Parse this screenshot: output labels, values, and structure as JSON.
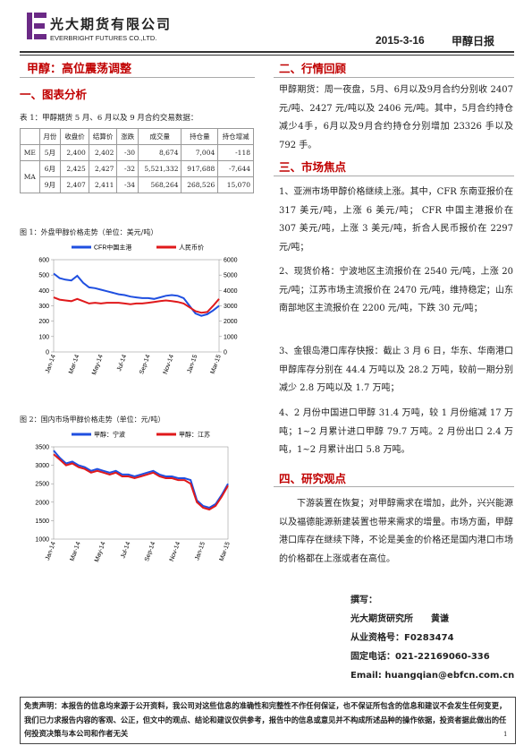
{
  "header": {
    "company": "光大期货有限公司",
    "company_en": "EVERBRIGHT FUTURES CO.,LTD.",
    "date": "2015-3-16",
    "report": "甲醇日报"
  },
  "title": "甲醇：高位震荡调整",
  "section1": {
    "heading": "一、图表分析",
    "table_caption": "表 1：甲醇期货 5 月、6 月以及 9 月合约交易数据：",
    "table": {
      "header": [
        "月份",
        "收盘价",
        "结算价",
        "涨跌",
        "成交量",
        "持仓量",
        "持仓增减"
      ],
      "groups": [
        {
          "name": "ME",
          "rows": [
            [
              "5月",
              "2,400",
              "2,402",
              "-30",
              "8,674",
              "7,004",
              "-118"
            ]
          ]
        },
        {
          "name": "MA",
          "rows": [
            [
              "6月",
              "2,425",
              "2,427",
              "-32",
              "5,521,332",
              "917,688",
              "-7,644"
            ],
            [
              "9月",
              "2,407",
              "2,411",
              "-34",
              "568,264",
              "268,526",
              "15,070"
            ]
          ]
        }
      ]
    }
  },
  "chart_data": [
    {
      "type": "line",
      "title": "图 1：外盘甲醇价格走势（单位：美元/吨）",
      "categories": [
        "Jan-14",
        null,
        null,
        null,
        "Mar-14",
        null,
        null,
        null,
        "May-14",
        null,
        null,
        null,
        "Jul-14",
        null,
        null,
        null,
        "Sep-14",
        null,
        null,
        null,
        "Nov-14",
        null,
        null,
        null,
        "Jan-15",
        null,
        null,
        null,
        "Mar-15"
      ],
      "series": [
        {
          "name": "CFR中国主港",
          "color": "#1f4fe0",
          "values": [
            510,
            480,
            470,
            465,
            495,
            450,
            420,
            415,
            405,
            395,
            385,
            375,
            370,
            360,
            355,
            350,
            350,
            345,
            355,
            365,
            370,
            365,
            350,
            300,
            250,
            235,
            245,
            270,
            300
          ]
        },
        {
          "name": "人民币价",
          "color": "#e0191b",
          "axis": "y2",
          "values": [
            3550,
            3400,
            3350,
            3300,
            3450,
            3300,
            3150,
            3200,
            3150,
            3200,
            3200,
            3200,
            3150,
            3100,
            3150,
            3150,
            3200,
            3250,
            3300,
            3350,
            3300,
            3250,
            3150,
            2900,
            2650,
            2550,
            2600,
            3000,
            3450
          ]
        }
      ],
      "ylim": [
        0,
        600
      ],
      "yticks": [
        0,
        100,
        200,
        300,
        400,
        500,
        600
      ],
      "y2lim": [
        0,
        6000
      ],
      "y2ticks": [
        0,
        1000,
        2000,
        3000,
        4000,
        5000,
        6000
      ]
    },
    {
      "type": "line",
      "title": "图 2：国内市场甲醇价格走势（单位：元/吨）",
      "categories": [
        "Jan-14",
        null,
        null,
        null,
        "Mar-14",
        null,
        null,
        null,
        "May-14",
        null,
        null,
        null,
        "Jul-14",
        null,
        null,
        null,
        "Sep-14",
        null,
        null,
        null,
        "Nov-14",
        null,
        null,
        null,
        "Jan-15",
        null,
        null,
        null,
        "Mar-15"
      ],
      "series": [
        {
          "name": "甲醇：宁波",
          "color": "#1f4fe0",
          "values": [
            3400,
            3200,
            3050,
            3100,
            3000,
            2950,
            2850,
            2900,
            2850,
            2800,
            2850,
            2750,
            2750,
            2700,
            2750,
            2800,
            2850,
            2750,
            2700,
            2700,
            2650,
            2650,
            2600,
            2050,
            1900,
            1850,
            1950,
            2200,
            2500
          ]
        },
        {
          "name": "甲醇：江苏",
          "color": "#e0191b",
          "values": [
            3300,
            3150,
            3000,
            3050,
            2950,
            2900,
            2800,
            2850,
            2800,
            2750,
            2800,
            2700,
            2700,
            2650,
            2700,
            2750,
            2800,
            2700,
            2650,
            2650,
            2600,
            2600,
            2500,
            2000,
            1850,
            1800,
            1900,
            2150,
            2450
          ]
        }
      ],
      "ylim": [
        1000,
        3500
      ],
      "yticks": [
        1000,
        1500,
        2000,
        2500,
        3000,
        3500
      ]
    }
  ],
  "section2": {
    "heading": "二、行情回顾",
    "text": "甲醇期货：周一夜盘，5月、6月以及9月合约分别收 2407 元/吨、2427 元/吨以及 2406 元/吨。其中，5月合约持仓减少4手，6月以及9月合约持仓分别增加 23326 手以及 792 手。"
  },
  "section3": {
    "heading": "三、市场焦点",
    "items": [
      "1、亚洲市场甲醇价格继续上涨。其中，CFR 东南亚报价在 317 美元/吨，上涨 6 美元/吨； CFR 中国主港报价在 307 美元/吨，上涨 3 美元/吨，折合人民币报价在 2297 元/吨；",
      "2、现货价格：宁波地区主流报价在 2540 元/吨，上涨 20 元/吨；江苏市场主流报价在 2470 元/吨，维持稳定；山东南部地区主流报价在 2200 元/吨，下跌 30 元/吨；",
      "3、金银岛港口库存快报：截止 3 月 6 日，华东、华南港口甲醇库存分别在 44.4 万吨以及 28.2 万吨，较前一期分别减少 2.8 万吨以及 1.7 万吨；",
      "4、2 月份中国进口甲醇 31.4 万吨，较 1 月份缩减 17 万吨；1~2 月累计进口甲醇 79.7 万吨。2 月份出口 2.4 万吨，1~2 月累计出口 5.8 万吨。"
    ]
  },
  "section4": {
    "heading": "四、研究观点",
    "text": "下游装置在恢复；对甲醇需求在增加，此外，兴兴能源以及福德能源新建装置也带来需求的增量。市场方面，甲醇港口库存在继续下降，不论是美金的价格还是国内港口市场的价格都在上涨或者在高位。"
  },
  "author": {
    "label": "撰写：",
    "org": "光大期货研究所　　黄谦",
    "license": "从业资格号：F0283474",
    "phone": "固定电话：021-22169060-336",
    "email": "Email:  huangqian@ebfcn.com.cn"
  },
  "footer": {
    "disclaimer": "免责声明：本报告的信息均来源于公开资料，我公司对这些信息的准确性和完整性不作任何保证，也不保证所包含的信息和建议不会发生任何变更，我们已力求报告内容的客观、公正，但文中的观点、结论和建议仅供参考，报告中的信息或意见并不构成所述品种的操作依据，投资者据此做出的任何投资决策与本公司和作者无关",
    "page": "1"
  }
}
